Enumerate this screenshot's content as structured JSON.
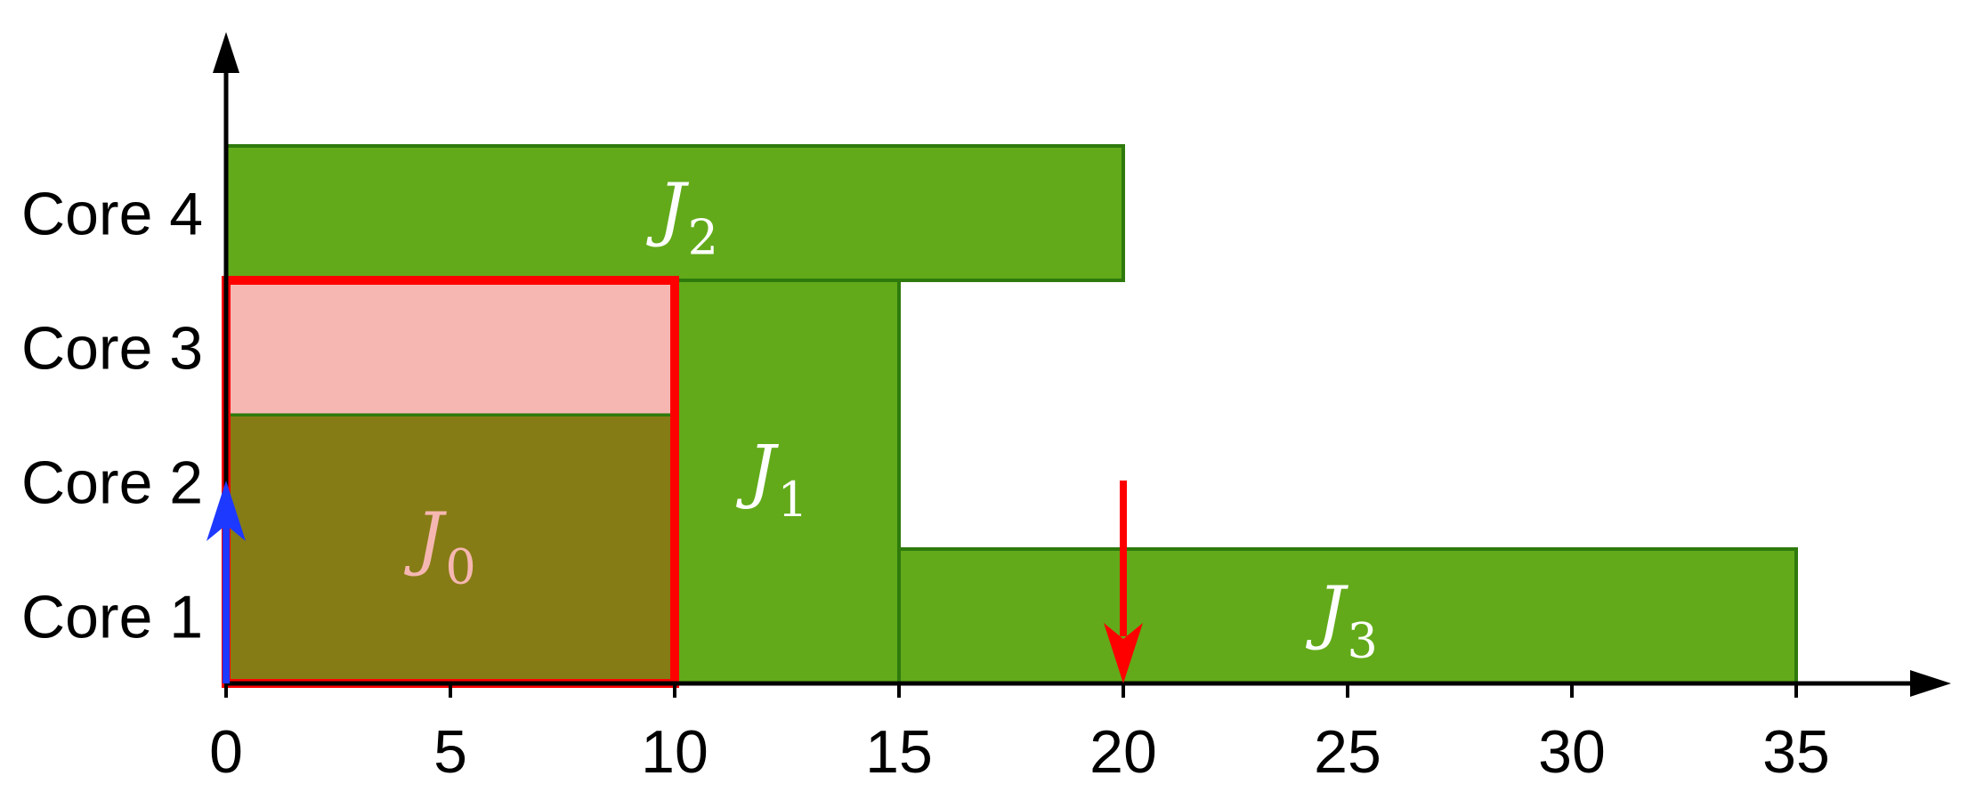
{
  "diagram": {
    "x_axis": {
      "min": 0,
      "max": 38,
      "ticks": [
        {
          "value": 0,
          "label": "0"
        },
        {
          "value": 5,
          "label": "5"
        },
        {
          "value": 10,
          "label": "10"
        },
        {
          "value": 15,
          "label": "15"
        },
        {
          "value": 20,
          "label": "20"
        },
        {
          "value": 25,
          "label": "25"
        },
        {
          "value": 30,
          "label": "30"
        },
        {
          "value": 35,
          "label": "35"
        }
      ]
    },
    "cores": [
      {
        "id": 1,
        "label": "Core 1"
      },
      {
        "id": 2,
        "label": "Core 2"
      },
      {
        "id": 3,
        "label": "Core 3"
      },
      {
        "id": 4,
        "label": "Core 4"
      }
    ],
    "jobs": [
      {
        "name": "J",
        "sub": "0",
        "start": 0,
        "end": 10,
        "cores": [
          1,
          2
        ],
        "fill": "#867c15",
        "label_color": "#f6b7b2",
        "label_core": 1.55,
        "label_time": 4.9
      },
      {
        "name": "J",
        "sub": "1",
        "start": 10,
        "end": 15,
        "cores": [
          1,
          2,
          3
        ],
        "fill": "#62aa1a",
        "label_color": "#ffffff",
        "label_core": 2.05,
        "label_time": 12.3
      },
      {
        "name": "J",
        "sub": "2",
        "start": 0,
        "end": 20,
        "cores": [
          4
        ],
        "fill": "#62aa1a",
        "label_color": "#ffffff",
        "label_core": 4.0,
        "label_time": 10.3
      },
      {
        "name": "J",
        "sub": "3",
        "start": 15,
        "end": 35,
        "cores": [
          1
        ],
        "fill": "#62aa1a",
        "label_color": "#ffffff",
        "label_core": 1.0,
        "label_time": 25.0
      }
    ],
    "idle_region": {
      "start": 0,
      "end": 10,
      "cores": [
        3
      ],
      "fill": "#f6b7b2"
    },
    "highlight_box": {
      "start": 0,
      "end": 10,
      "cores": [
        1,
        2,
        3
      ],
      "color": "#ff0000"
    },
    "events": [
      {
        "type": "release",
        "time": 0,
        "color": "#1e39ff",
        "direction": "up"
      },
      {
        "type": "deadline",
        "time": 20,
        "color": "#ff0000",
        "direction": "down"
      }
    ],
    "colors": {
      "job_border": "#2e7a0c",
      "axis": "#000000"
    }
  }
}
